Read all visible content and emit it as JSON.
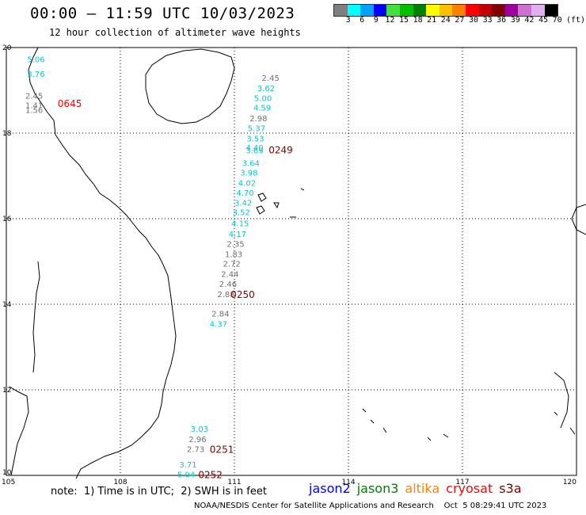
{
  "header": {
    "title": "00:00 – 11:59 UTC 10/03/2023",
    "subtitle": "12 hour collection of altimeter wave heights"
  },
  "legend": {
    "unit_label": "(ft)",
    "bins": [
      {
        "label": "3",
        "color": "#7f7f7f"
      },
      {
        "label": "6",
        "color": "#00ffff"
      },
      {
        "label": "9",
        "color": "#00a0ff"
      },
      {
        "label": "12",
        "color": "#0000ff"
      },
      {
        "label": "15",
        "color": "#40e040"
      },
      {
        "label": "18",
        "color": "#00c000"
      },
      {
        "label": "21",
        "color": "#008000"
      },
      {
        "label": "24",
        "color": "#ffff00"
      },
      {
        "label": "27",
        "color": "#ffc000"
      },
      {
        "label": "30",
        "color": "#ff8000"
      },
      {
        "label": "33",
        "color": "#ff0000"
      },
      {
        "label": "36",
        "color": "#c00000"
      },
      {
        "label": "39",
        "color": "#800000"
      },
      {
        "label": "42",
        "color": "#a000a0"
      },
      {
        "label": "45",
        "color": "#d070d0"
      },
      {
        "label": "70",
        "color": "#e0b0f0"
      },
      {
        "label": "",
        "color": "#000000"
      }
    ]
  },
  "map": {
    "lon_ticks": [
      "105",
      "108",
      "111",
      "114",
      "117",
      "120"
    ],
    "lat_ticks": [
      "20",
      "18",
      "16",
      "14",
      "12",
      "10"
    ],
    "lon_range": [
      105,
      120
    ],
    "lat_range": [
      10,
      20
    ]
  },
  "wave_labels": [
    {
      "text": "5.06",
      "lon": 105.55,
      "lat": 19.73,
      "color": "#00c8d0"
    },
    {
      "text": "3.76",
      "lon": 105.55,
      "lat": 19.39,
      "color": "#00c8d0"
    },
    {
      "text": "2.45",
      "lon": 105.5,
      "lat": 18.88,
      "color": "#707070"
    },
    {
      "text": "1.41",
      "lon": 105.5,
      "lat": 18.66,
      "color": "#707070"
    },
    {
      "text": "1.56",
      "lon": 105.5,
      "lat": 18.55,
      "color": "#707070"
    },
    {
      "text": "2.45",
      "lon": 111.72,
      "lat": 19.3,
      "color": "#707070"
    },
    {
      "text": "3.62",
      "lon": 111.6,
      "lat": 19.06,
      "color": "#00c8d0"
    },
    {
      "text": "5.00",
      "lon": 111.52,
      "lat": 18.82,
      "color": "#00c8d0"
    },
    {
      "text": "4.59",
      "lon": 111.5,
      "lat": 18.6,
      "color": "#00c8d0"
    },
    {
      "text": "2.98",
      "lon": 111.4,
      "lat": 18.35,
      "color": "#707070"
    },
    {
      "text": "5.37",
      "lon": 111.35,
      "lat": 18.12,
      "color": "#00c8d0"
    },
    {
      "text": "3.53",
      "lon": 111.32,
      "lat": 17.88,
      "color": "#00c8d0"
    },
    {
      "text": "4.40",
      "lon": 111.3,
      "lat": 17.67,
      "color": "#00c8d0"
    },
    {
      "text": "3.69",
      "lon": 111.3,
      "lat": 17.6,
      "color": "#00c8d0"
    },
    {
      "text": "3.64",
      "lon": 111.2,
      "lat": 17.31,
      "color": "#00c8d0"
    },
    {
      "text": "3.98",
      "lon": 111.15,
      "lat": 17.08,
      "color": "#00c8d0"
    },
    {
      "text": "4.02",
      "lon": 111.1,
      "lat": 16.84,
      "color": "#00c8d0"
    },
    {
      "text": "4.70",
      "lon": 111.05,
      "lat": 16.61,
      "color": "#00c8d0"
    },
    {
      "text": "3.42",
      "lon": 111.0,
      "lat": 16.38,
      "color": "#00c8d0"
    },
    {
      "text": "3.52",
      "lon": 110.95,
      "lat": 16.16,
      "color": "#00c8d0"
    },
    {
      "text": "4.15",
      "lon": 110.92,
      "lat": 15.9,
      "color": "#00c8d0"
    },
    {
      "text": "4.17",
      "lon": 110.85,
      "lat": 15.65,
      "color": "#00c8d0"
    },
    {
      "text": "2.35",
      "lon": 110.8,
      "lat": 15.42,
      "color": "#707070"
    },
    {
      "text": "1.83",
      "lon": 110.75,
      "lat": 15.18,
      "color": "#707070"
    },
    {
      "text": "2.72",
      "lon": 110.7,
      "lat": 14.95,
      "color": "#707070"
    },
    {
      "text": "2.44",
      "lon": 110.65,
      "lat": 14.71,
      "color": "#707070"
    },
    {
      "text": "2.46",
      "lon": 110.6,
      "lat": 14.48,
      "color": "#707070"
    },
    {
      "text": "2.88",
      "lon": 110.55,
      "lat": 14.24,
      "color": "#707070"
    },
    {
      "text": "2.84",
      "lon": 110.4,
      "lat": 13.79,
      "color": "#707070"
    },
    {
      "text": "4.37",
      "lon": 110.35,
      "lat": 13.55,
      "color": "#00c8d0"
    },
    {
      "text": "3.03",
      "lon": 109.85,
      "lat": 11.09,
      "color": "#00c8d0"
    },
    {
      "text": "2.96",
      "lon": 109.8,
      "lat": 10.85,
      "color": "#707070"
    },
    {
      "text": "2.73",
      "lon": 109.75,
      "lat": 10.62,
      "color": "#707070"
    },
    {
      "text": "3.71",
      "lon": 109.55,
      "lat": 10.26,
      "color": "#00c8d0"
    },
    {
      "text": "5.04",
      "lon": 109.5,
      "lat": 10.03,
      "color": "#00c8d0"
    }
  ],
  "pass_labels": [
    {
      "text": "0645",
      "lon": 106.35,
      "lat": 18.7,
      "color": "#ff0000"
    },
    {
      "text": "0249",
      "lon": 111.9,
      "lat": 17.62,
      "color": "#800000"
    },
    {
      "text": "0250",
      "lon": 110.9,
      "lat": 14.24,
      "color": "#800000"
    },
    {
      "text": "0251",
      "lon": 110.35,
      "lat": 10.62,
      "color": "#800000"
    },
    {
      "text": "0252",
      "lon": 110.05,
      "lat": 10.03,
      "color": "#800000"
    }
  ],
  "footer": {
    "note": "note:  1) Time is in UTC;  2) SWH is in feet",
    "satellites": [
      {
        "name": "jason2",
        "color": "#0000ff"
      },
      {
        "name": "jason3",
        "color": "#008000"
      },
      {
        "name": "altika",
        "color": "#ff8000"
      },
      {
        "name": "cryosat",
        "color": "#ff0000"
      },
      {
        "name": "s3a",
        "color": "#800000"
      }
    ],
    "credit": "NOAA/NESDIS Center for Satellite Applications and Research    Oct  5 08:29:41 UTC 2023"
  }
}
